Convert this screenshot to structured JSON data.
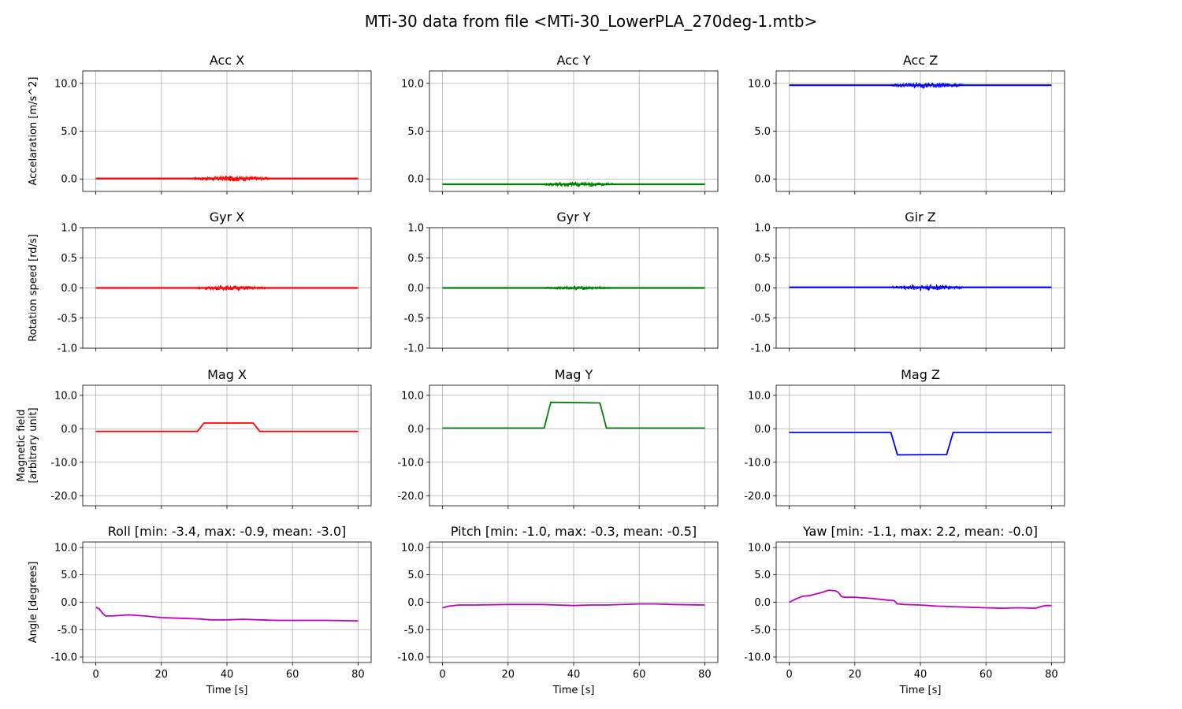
{
  "figure_title": "MTi-30 data from file <MTi-30_LowerPLA_270deg-1.mtb>",
  "chart_data": [
    {
      "type": "line",
      "title": "Acc X",
      "ylabel": "Accelaration [m/s^2]",
      "xlabel": "",
      "xlim": [
        -4,
        84
      ],
      "ylim": [
        -1.3,
        11.3
      ],
      "xticks": [
        0,
        20,
        40,
        60,
        80
      ],
      "yticks": [
        0,
        5,
        10
      ],
      "ytick_labels": [
        "0.0",
        "5.0",
        "10.0"
      ],
      "grid": true,
      "color": "#ff0000",
      "baseline": 0.05,
      "noise": [
        {
          "x": [
            30,
            53
          ],
          "amp": 0.3
        }
      ],
      "series": [
        {
          "x": [
            0,
            80
          ],
          "y": [
            0.05,
            0.05
          ]
        }
      ]
    },
    {
      "type": "line",
      "title": "Acc Y",
      "ylabel": "",
      "xlabel": "",
      "xlim": [
        -4,
        84
      ],
      "ylim": [
        -1.3,
        11.3
      ],
      "xticks": [
        0,
        20,
        40,
        60,
        80
      ],
      "yticks": [
        0,
        5,
        10
      ],
      "ytick_labels": [
        "0.0",
        "5.0",
        "10.0"
      ],
      "grid": true,
      "color": "#008000",
      "baseline": -0.55,
      "noise": [
        {
          "x": [
            31,
            52
          ],
          "amp": 0.3
        }
      ],
      "series": [
        {
          "x": [
            0,
            80
          ],
          "y": [
            -0.55,
            -0.55
          ]
        }
      ]
    },
    {
      "type": "line",
      "title": "Acc Z",
      "ylabel": "",
      "xlabel": "",
      "xlim": [
        -4,
        84
      ],
      "ylim": [
        -1.3,
        11.3
      ],
      "xticks": [
        0,
        20,
        40,
        60,
        80
      ],
      "yticks": [
        0,
        5,
        10
      ],
      "ytick_labels": [
        "0.0",
        "5.0",
        "10.0"
      ],
      "grid": true,
      "color": "#0000ff",
      "baseline": 9.8,
      "noise": [
        {
          "x": [
            31,
            53
          ],
          "amp": 0.3
        }
      ],
      "series": [
        {
          "x": [
            0,
            80
          ],
          "y": [
            9.8,
            9.8
          ]
        }
      ]
    },
    {
      "type": "line",
      "title": "Gyr X",
      "ylabel": "Rotation speed [rd/s]",
      "xlabel": "",
      "xlim": [
        -4,
        84
      ],
      "ylim": [
        -1.0,
        1.0
      ],
      "xticks": [
        0,
        20,
        40,
        60,
        80
      ],
      "yticks": [
        -1,
        -0.5,
        0,
        0.5,
        1
      ],
      "ytick_labels": [
        "-1.0",
        "-0.5",
        "0.0",
        "0.5",
        "1.0"
      ],
      "grid": true,
      "color": "#ff0000",
      "baseline": 0.0,
      "noise": [
        {
          "x": [
            31,
            52
          ],
          "amp": 0.04
        }
      ],
      "series": [
        {
          "x": [
            0,
            80
          ],
          "y": [
            0,
            0
          ]
        }
      ]
    },
    {
      "type": "line",
      "title": "Gyr Y",
      "ylabel": "",
      "xlabel": "",
      "xlim": [
        -4,
        84
      ],
      "ylim": [
        -1.0,
        1.0
      ],
      "xticks": [
        0,
        20,
        40,
        60,
        80
      ],
      "yticks": [
        -1,
        -0.5,
        0,
        0.5,
        1
      ],
      "ytick_labels": [
        "-1.0",
        "-0.5",
        "0.0",
        "0.5",
        "1.0"
      ],
      "grid": true,
      "color": "#008000",
      "baseline": 0.0,
      "noise": [
        {
          "x": [
            31,
            52
          ],
          "amp": 0.03
        }
      ],
      "series": [
        {
          "x": [
            0,
            80
          ],
          "y": [
            0,
            0
          ]
        }
      ]
    },
    {
      "type": "line",
      "title": "Gir Z",
      "ylabel": "",
      "xlabel": "",
      "xlim": [
        -4,
        84
      ],
      "ylim": [
        -1.0,
        1.0
      ],
      "xticks": [
        0,
        20,
        40,
        60,
        80
      ],
      "yticks": [
        -1,
        -0.5,
        0,
        0.5,
        1
      ],
      "ytick_labels": [
        "-1.0",
        "-0.5",
        "0.0",
        "0.5",
        "1.0"
      ],
      "grid": true,
      "color": "#0000ff",
      "baseline": 0.01,
      "noise": [
        {
          "x": [
            31,
            53
          ],
          "amp": 0.05
        }
      ],
      "series": [
        {
          "x": [
            0,
            80
          ],
          "y": [
            0.01,
            0.01
          ]
        }
      ]
    },
    {
      "type": "line",
      "title": "Mag X",
      "ylabel": "Magnetic field\n[arbitrary unit]",
      "xlabel": "",
      "xlim": [
        -4,
        84
      ],
      "ylim": [
        -23,
        13
      ],
      "xticks": [
        0,
        20,
        40,
        60,
        80
      ],
      "yticks": [
        -20,
        -10,
        0,
        10
      ],
      "ytick_labels": [
        "-20.0",
        "-10.0",
        "0.0",
        "10.0"
      ],
      "grid": true,
      "color": "#ff0000",
      "series": [
        {
          "x": [
            0,
            31,
            33,
            48,
            50,
            80
          ],
          "y": [
            -0.8,
            -0.8,
            1.7,
            1.7,
            -0.8,
            -0.8
          ]
        }
      ]
    },
    {
      "type": "line",
      "title": "Mag Y",
      "ylabel": "",
      "xlabel": "",
      "xlim": [
        -4,
        84
      ],
      "ylim": [
        -23,
        13
      ],
      "xticks": [
        0,
        20,
        40,
        60,
        80
      ],
      "yticks": [
        -20,
        -10,
        0,
        10
      ],
      "ytick_labels": [
        "-20.0",
        "-10.0",
        "0.0",
        "10.0"
      ],
      "grid": true,
      "color": "#008000",
      "series": [
        {
          "x": [
            0,
            31,
            33,
            48,
            50,
            80
          ],
          "y": [
            0.2,
            0.2,
            7.9,
            7.7,
            0.2,
            0.2
          ]
        }
      ]
    },
    {
      "type": "line",
      "title": "Mag Z",
      "ylabel": "",
      "xlabel": "",
      "xlim": [
        -4,
        84
      ],
      "ylim": [
        -23,
        13
      ],
      "xticks": [
        0,
        20,
        40,
        60,
        80
      ],
      "yticks": [
        -20,
        -10,
        0,
        10
      ],
      "ytick_labels": [
        "-20.0",
        "-10.0",
        "0.0",
        "10.0"
      ],
      "grid": true,
      "color": "#0000ff",
      "series": [
        {
          "x": [
            0,
            31,
            33,
            48,
            50,
            80
          ],
          "y": [
            -1.1,
            -1.1,
            -7.8,
            -7.7,
            -1.1,
            -1.1
          ]
        }
      ]
    },
    {
      "type": "line",
      "title": "Roll [min: -3.4, max: -0.9, mean: -3.0]",
      "ylabel": "Angle [degrees]",
      "xlabel": "Time [s]",
      "xlim": [
        -4,
        84
      ],
      "ylim": [
        -11,
        11
      ],
      "xticks": [
        0,
        20,
        40,
        60,
        80
      ],
      "yticks": [
        -10,
        -5,
        0,
        5,
        10
      ],
      "ytick_labels": [
        "-10.0",
        "-5.0",
        "0.0",
        "5.0",
        "10.0"
      ],
      "grid": true,
      "color": "#bf00bf",
      "series": [
        {
          "x": [
            0,
            1,
            2,
            3,
            5,
            10,
            15,
            20,
            25,
            30,
            33,
            35,
            40,
            45,
            50,
            55,
            60,
            70,
            80
          ],
          "y": [
            -0.9,
            -1.2,
            -2.0,
            -2.5,
            -2.5,
            -2.3,
            -2.5,
            -2.8,
            -2.9,
            -3.0,
            -3.1,
            -3.2,
            -3.2,
            -3.1,
            -3.2,
            -3.3,
            -3.3,
            -3.3,
            -3.4
          ]
        }
      ]
    },
    {
      "type": "line",
      "title": "Pitch [min: -1.0, max: -0.3, mean: -0.5]",
      "ylabel": "",
      "xlabel": "Time [s]",
      "xlim": [
        -4,
        84
      ],
      "ylim": [
        -11,
        11
      ],
      "xticks": [
        0,
        20,
        40,
        60,
        80
      ],
      "yticks": [
        -10,
        -5,
        0,
        5,
        10
      ],
      "ytick_labels": [
        "-10.0",
        "-5.0",
        "0.0",
        "5.0",
        "10.0"
      ],
      "grid": true,
      "color": "#bf00bf",
      "series": [
        {
          "x": [
            0,
            2,
            5,
            10,
            20,
            30,
            35,
            40,
            45,
            50,
            60,
            65,
            70,
            80
          ],
          "y": [
            -1.0,
            -0.7,
            -0.5,
            -0.5,
            -0.4,
            -0.4,
            -0.5,
            -0.6,
            -0.5,
            -0.5,
            -0.3,
            -0.3,
            -0.4,
            -0.5
          ]
        }
      ]
    },
    {
      "type": "line",
      "title": "Yaw [min: -1.1, max: 2.2, mean: -0.0]",
      "ylabel": "",
      "xlabel": "Time [s]",
      "xlim": [
        -4,
        84
      ],
      "ylim": [
        -11,
        11
      ],
      "xticks": [
        0,
        20,
        40,
        60,
        80
      ],
      "yticks": [
        -10,
        -5,
        0,
        5,
        10
      ],
      "ytick_labels": [
        "-10.0",
        "-5.0",
        "0.0",
        "5.0",
        "10.0"
      ],
      "grid": true,
      "color": "#bf00bf",
      "series": [
        {
          "x": [
            0,
            2,
            4,
            6,
            8,
            10,
            12,
            14,
            15,
            16,
            17,
            20,
            25,
            30,
            32,
            33,
            35,
            40,
            45,
            50,
            55,
            60,
            65,
            70,
            75,
            78,
            80
          ],
          "y": [
            0.0,
            0.6,
            1.1,
            1.2,
            1.5,
            1.8,
            2.2,
            2.1,
            1.8,
            1.0,
            0.9,
            0.9,
            0.7,
            0.4,
            0.3,
            -0.3,
            -0.4,
            -0.5,
            -0.7,
            -0.8,
            -0.9,
            -1.0,
            -1.1,
            -1.0,
            -1.1,
            -0.6,
            -0.6
          ]
        }
      ]
    }
  ]
}
